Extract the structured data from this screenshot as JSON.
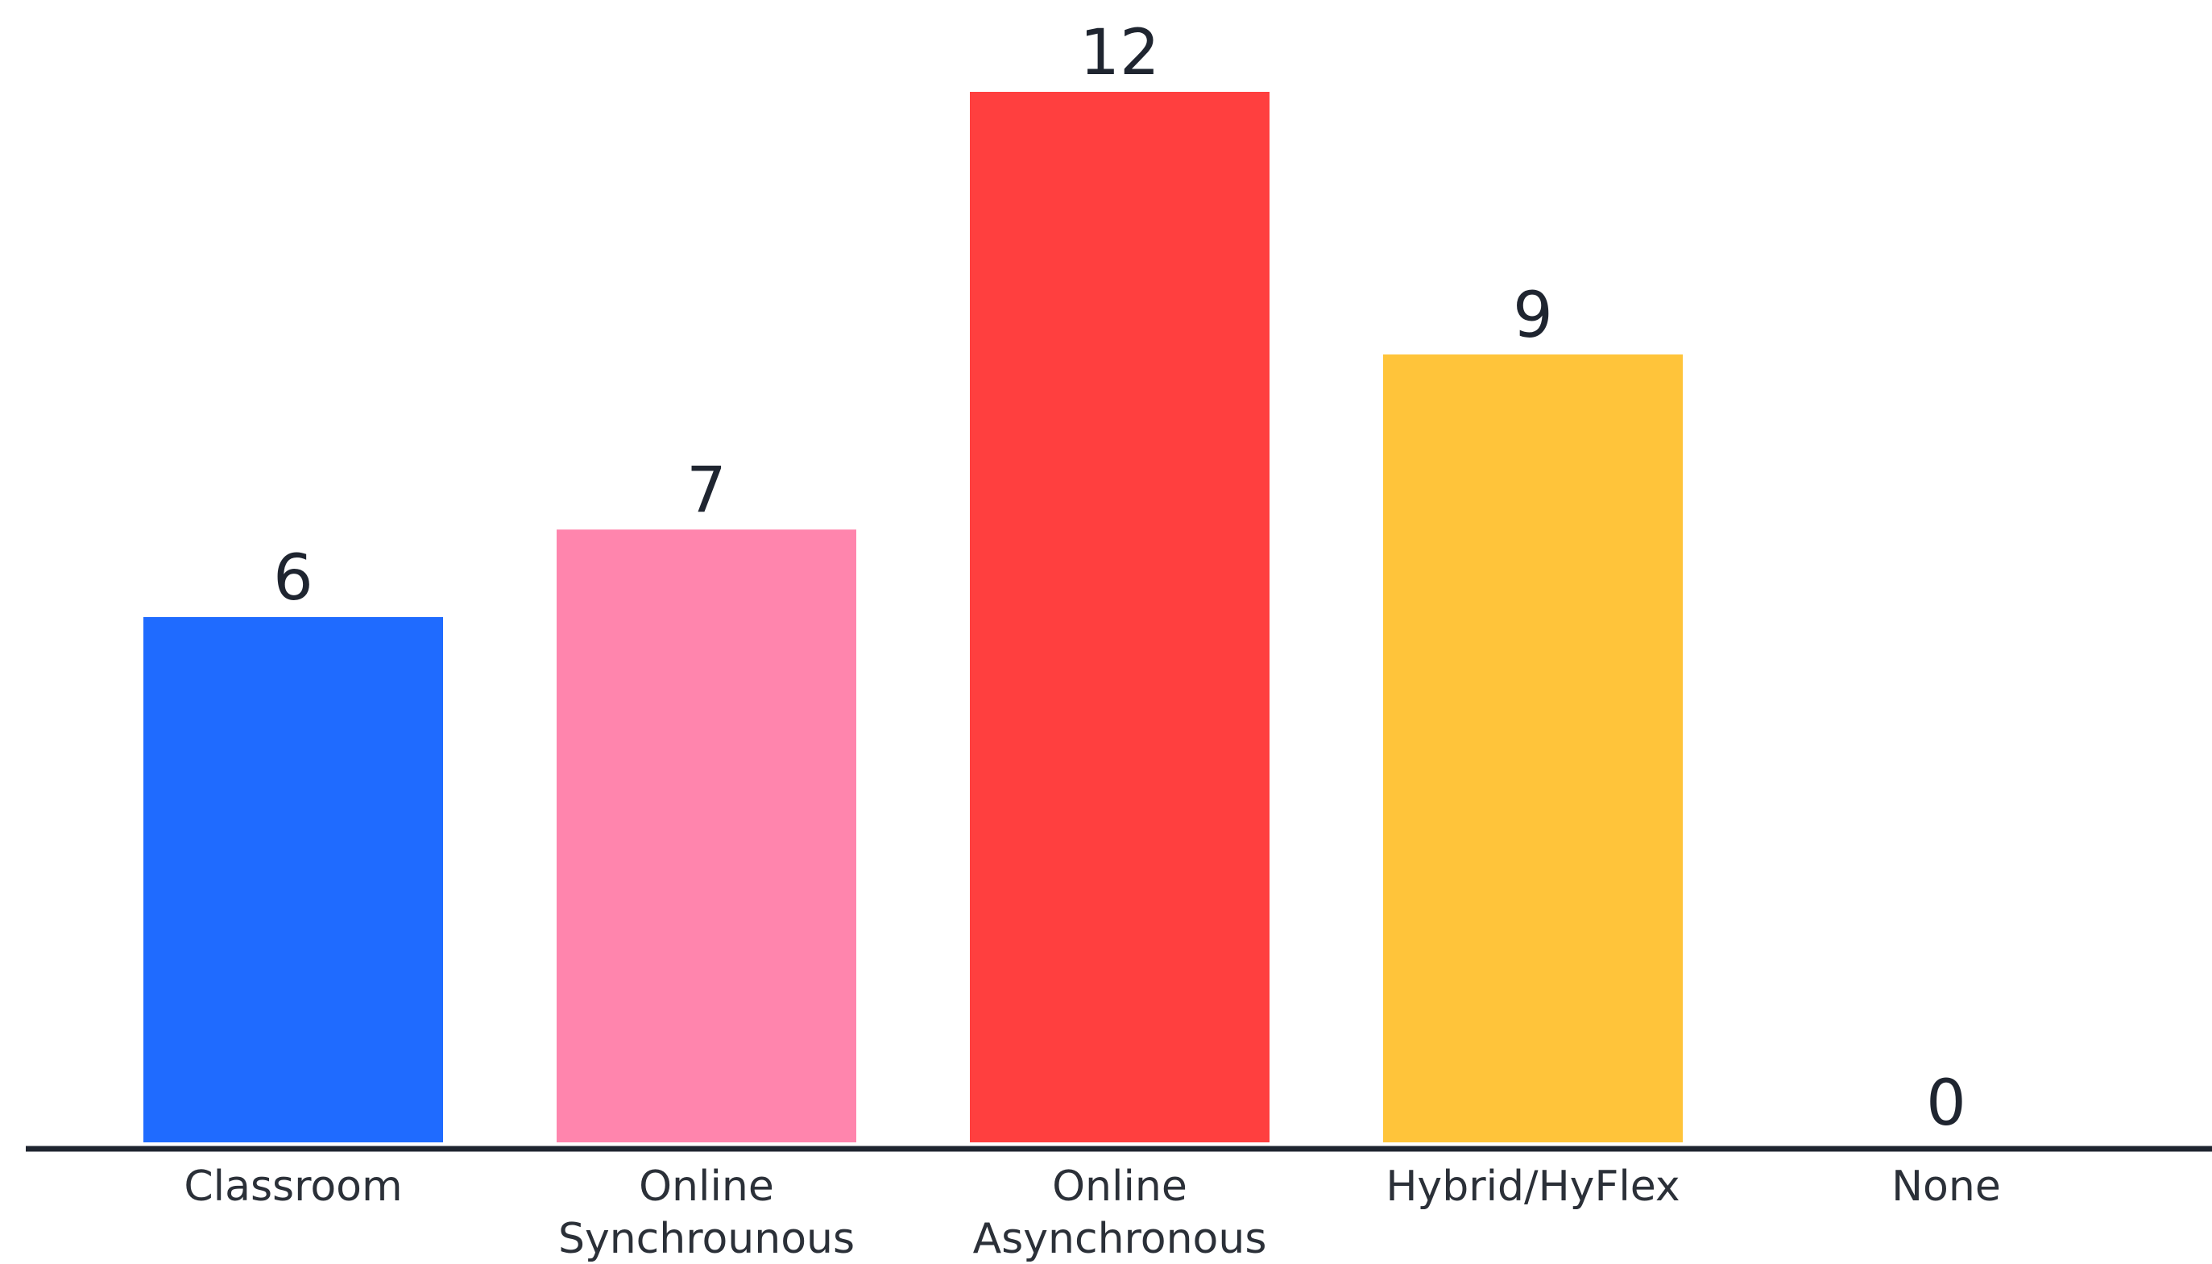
{
  "chart_data": {
    "type": "bar",
    "categories": [
      [
        "Classroom"
      ],
      [
        "Online",
        "Synchrounous"
      ],
      [
        "Online",
        "Asynchronous"
      ],
      [
        "Hybrid/HyFlex"
      ],
      [
        "None"
      ]
    ],
    "values": [
      6,
      7,
      12,
      9,
      0
    ],
    "colors": [
      "#1f6bff",
      "#ff85ad",
      "#ff3f3f",
      "#ffc43a",
      "#ffffff"
    ],
    "axis_color": "#1f2530",
    "label_color": "#2b3038",
    "title": "",
    "xlabel": "",
    "ylabel": "",
    "ylim": [
      0,
      12
    ],
    "grid": false,
    "legend": "none",
    "data_labels": true
  }
}
